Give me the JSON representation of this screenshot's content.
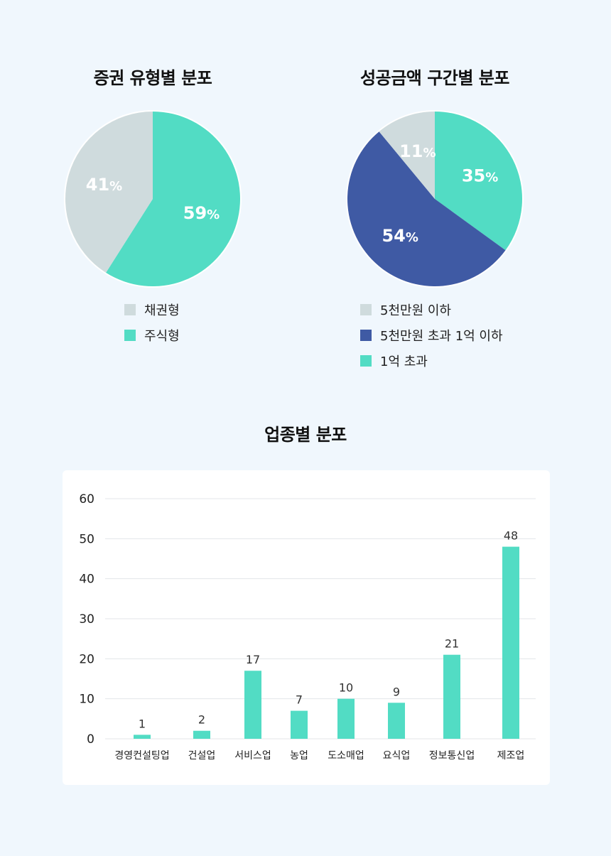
{
  "chart_data": [
    {
      "type": "pie",
      "title": "증권 유형별 분포",
      "slices": [
        {
          "label": "주식형",
          "value": 59,
          "display": "59%",
          "color": "#52dcc4"
        },
        {
          "label": "채권형",
          "value": 41,
          "display": "41%",
          "color": "#cfdbdd"
        }
      ],
      "legend": [
        {
          "label": "채권형",
          "color": "#cfdbdd"
        },
        {
          "label": "주식형",
          "color": "#52dcc4"
        }
      ]
    },
    {
      "type": "pie",
      "title": "성공금액 구간별 분포",
      "slices": [
        {
          "label": "1억 초과",
          "value": 35,
          "display": "35%",
          "color": "#52dcc4"
        },
        {
          "label": "5천만원 초과 1억 이하",
          "value": 54,
          "display": "54%",
          "color": "#3f5aa4"
        },
        {
          "label": "5천만원 이하",
          "value": 11,
          "display": "11%",
          "color": "#cfdbdd"
        }
      ],
      "legend": [
        {
          "label": "5천만원 이하",
          "color": "#cfdbdd"
        },
        {
          "label": "5천만원 초과 1억 이하",
          "color": "#3f5aa4"
        },
        {
          "label": "1억 초과",
          "color": "#52dcc4"
        }
      ]
    },
    {
      "type": "bar",
      "title": "업종별 분포",
      "categories": [
        "경영컨설팅업",
        "건설업",
        "서비스업",
        "농업",
        "도소매업",
        "요식업",
        "정보통신업",
        "제조업"
      ],
      "values": [
        1,
        2,
        17,
        7,
        10,
        9,
        21,
        48
      ],
      "ylim": [
        0,
        60
      ],
      "yticks": [
        0,
        10,
        20,
        30,
        40,
        50,
        60
      ],
      "grid": true,
      "bar_color": "#52dcc4"
    }
  ]
}
